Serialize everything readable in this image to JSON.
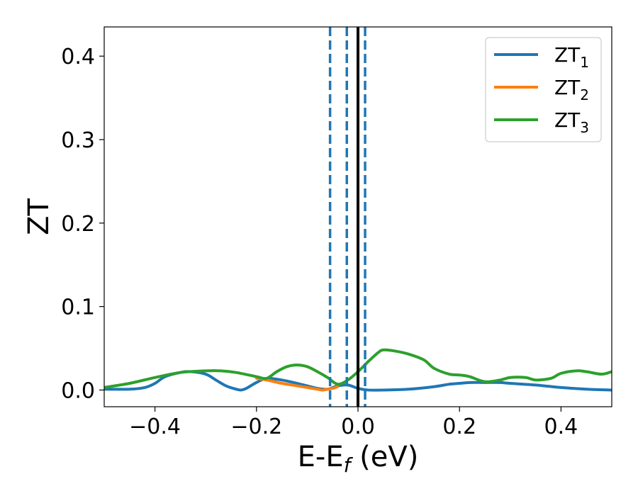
{
  "chart_data": {
    "type": "line",
    "xlabel_main": "E-E",
    "xlabel_sub": "f",
    "xlabel_unit": " (eV)",
    "ylabel": "ZT",
    "xlim": [
      -0.5,
      0.5
    ],
    "ylim": [
      -0.02,
      0.435
    ],
    "x_ticks": [
      -0.4,
      -0.2,
      0.0,
      0.2,
      0.4
    ],
    "x_tick_labels": [
      "−0.4",
      "−0.2",
      "0.0",
      "0.2",
      "0.4"
    ],
    "y_ticks": [
      0.0,
      0.1,
      0.2,
      0.3,
      0.4
    ],
    "y_tick_labels": [
      "0.0",
      "0.1",
      "0.2",
      "0.3",
      "0.4"
    ],
    "grid": false,
    "legend_position": "top-right",
    "series": [
      {
        "name_main": "ZT",
        "name_sub": "1",
        "color": "#1f77b4",
        "x": [
          -0.5,
          -0.45,
          -0.42,
          -0.4,
          -0.38,
          -0.35,
          -0.33,
          -0.3,
          -0.28,
          -0.26,
          -0.24,
          -0.23,
          -0.22,
          -0.2,
          -0.18,
          -0.15,
          -0.12,
          -0.1,
          -0.08,
          -0.06,
          -0.04,
          -0.02,
          0.0,
          0.02,
          0.05,
          0.1,
          0.15,
          0.18,
          0.2,
          0.22,
          0.25,
          0.28,
          0.3,
          0.35,
          0.4,
          0.45,
          0.5
        ],
        "y": [
          0.001,
          0.001,
          0.003,
          0.008,
          0.016,
          0.021,
          0.022,
          0.019,
          0.012,
          0.005,
          0.001,
          0.0,
          0.002,
          0.009,
          0.014,
          0.012,
          0.008,
          0.005,
          0.002,
          0.001,
          0.005,
          0.006,
          0.002,
          0.0,
          0.0,
          0.001,
          0.004,
          0.007,
          0.008,
          0.009,
          0.009,
          0.009,
          0.008,
          0.006,
          0.003,
          0.001,
          0.0
        ]
      },
      {
        "name_main": "ZT",
        "name_sub": "2",
        "color": "#ff7f0e",
        "x": [
          -0.2,
          -0.18,
          -0.15,
          -0.12,
          -0.1,
          -0.08,
          -0.07,
          -0.06,
          -0.05,
          -0.04
        ],
        "y": [
          0.014,
          0.012,
          0.008,
          0.005,
          0.003,
          0.001,
          0.0,
          0.001,
          0.002,
          0.004
        ]
      },
      {
        "name_main": "ZT",
        "name_sub": "3",
        "color": "#2ca02c",
        "x": [
          -0.5,
          -0.45,
          -0.4,
          -0.35,
          -0.3,
          -0.27,
          -0.24,
          -0.2,
          -0.18,
          -0.16,
          -0.14,
          -0.12,
          -0.1,
          -0.08,
          -0.06,
          -0.04,
          -0.02,
          0.0,
          0.02,
          0.04,
          0.05,
          0.07,
          0.1,
          0.13,
          0.15,
          0.18,
          0.2,
          0.22,
          0.25,
          0.28,
          0.3,
          0.33,
          0.35,
          0.38,
          0.4,
          0.43,
          0.45,
          0.48,
          0.5
        ],
        "y": [
          0.003,
          0.008,
          0.015,
          0.021,
          0.023,
          0.023,
          0.021,
          0.016,
          0.014,
          0.022,
          0.028,
          0.03,
          0.028,
          0.022,
          0.015,
          0.007,
          0.012,
          0.022,
          0.034,
          0.045,
          0.048,
          0.047,
          0.043,
          0.036,
          0.026,
          0.019,
          0.018,
          0.016,
          0.01,
          0.012,
          0.015,
          0.015,
          0.012,
          0.014,
          0.02,
          0.023,
          0.022,
          0.019,
          0.022
        ]
      }
    ],
    "vlines": [
      {
        "x": -0.055,
        "style": "dashed",
        "color": "#1f77b4"
      },
      {
        "x": -0.022,
        "style": "dashed",
        "color": "#1f77b4"
      },
      {
        "x": 0.0,
        "style": "solid",
        "color": "#000000"
      },
      {
        "x": 0.014,
        "style": "dashed",
        "color": "#1f77b4"
      }
    ]
  }
}
